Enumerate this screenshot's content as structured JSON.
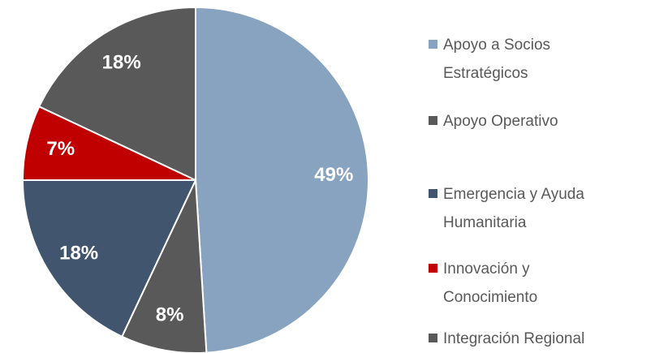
{
  "chart_data": {
    "type": "pie",
    "categories": [
      "Apoyo a Socios Estratégicos",
      "Apoyo Operativo",
      "Emergencia y Ayuda Humanitaria",
      "Innovación y Conocimiento",
      "Integración Regional"
    ],
    "values": [
      49,
      8,
      18,
      7,
      18
    ],
    "value_labels": [
      "49%",
      "8%",
      "18%",
      "7%",
      "18%"
    ],
    "colors": [
      "#87a3bf",
      "#595959",
      "#41556f",
      "#c00000",
      "#595959"
    ],
    "legend": "right"
  }
}
